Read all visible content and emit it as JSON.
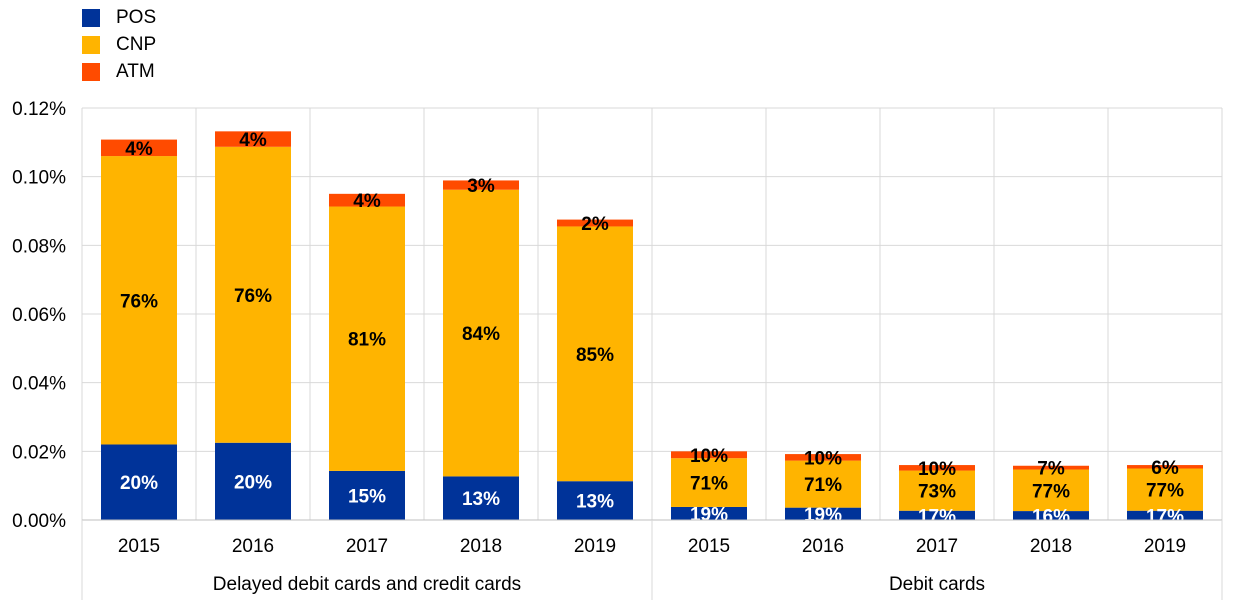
{
  "chart_data": {
    "type": "bar",
    "stacked": true,
    "title": "",
    "xlabel": "",
    "ylabel": "",
    "ylim": [
      0,
      0.12
    ],
    "y_ticks": [
      "0.00%",
      "0.02%",
      "0.04%",
      "0.06%",
      "0.08%",
      "0.10%",
      "0.12%"
    ],
    "y_tick_values": [
      0,
      0.02,
      0.04,
      0.06,
      0.08,
      0.1,
      0.12
    ],
    "grid": true,
    "legend_position": "top-left",
    "colors": {
      "POS": "#003399",
      "CNP": "#FFB400",
      "ATM": "#FF4B00"
    },
    "groups": [
      {
        "label": "Delayed debit cards and credit cards",
        "categories": [
          "2015",
          "2016",
          "2017",
          "2018",
          "2019"
        ]
      },
      {
        "label": "Debit cards",
        "categories": [
          "2015",
          "2016",
          "2017",
          "2018",
          "2019"
        ]
      }
    ],
    "categories": [
      "2015",
      "2016",
      "2017",
      "2018",
      "2019",
      "2015",
      "2016",
      "2017",
      "2018",
      "2019"
    ],
    "series": [
      {
        "name": "POS",
        "values": [
          0.022,
          0.0225,
          0.0143,
          0.0127,
          0.0113,
          0.0038,
          0.0036,
          0.0027,
          0.0026,
          0.0027
        ],
        "labels": [
          "20%",
          "20%",
          "15%",
          "13%",
          "13%",
          "19%",
          "19%",
          "17%",
          "16%",
          "17%"
        ]
      },
      {
        "name": "CNP",
        "values": [
          0.084,
          0.0862,
          0.077,
          0.0835,
          0.0742,
          0.0142,
          0.0137,
          0.0117,
          0.0121,
          0.0123
        ],
        "labels": [
          "76%",
          "76%",
          "81%",
          "84%",
          "85%",
          "71%",
          "71%",
          "73%",
          "77%",
          "77%"
        ]
      },
      {
        "name": "ATM",
        "values": [
          0.0048,
          0.0045,
          0.0037,
          0.0027,
          0.002,
          0.002,
          0.0019,
          0.0016,
          0.0011,
          0.001
        ],
        "labels": [
          "4%",
          "4%",
          "4%",
          "3%",
          "2%",
          "10%",
          "10%",
          "10%",
          "7%",
          "6%"
        ]
      }
    ]
  }
}
